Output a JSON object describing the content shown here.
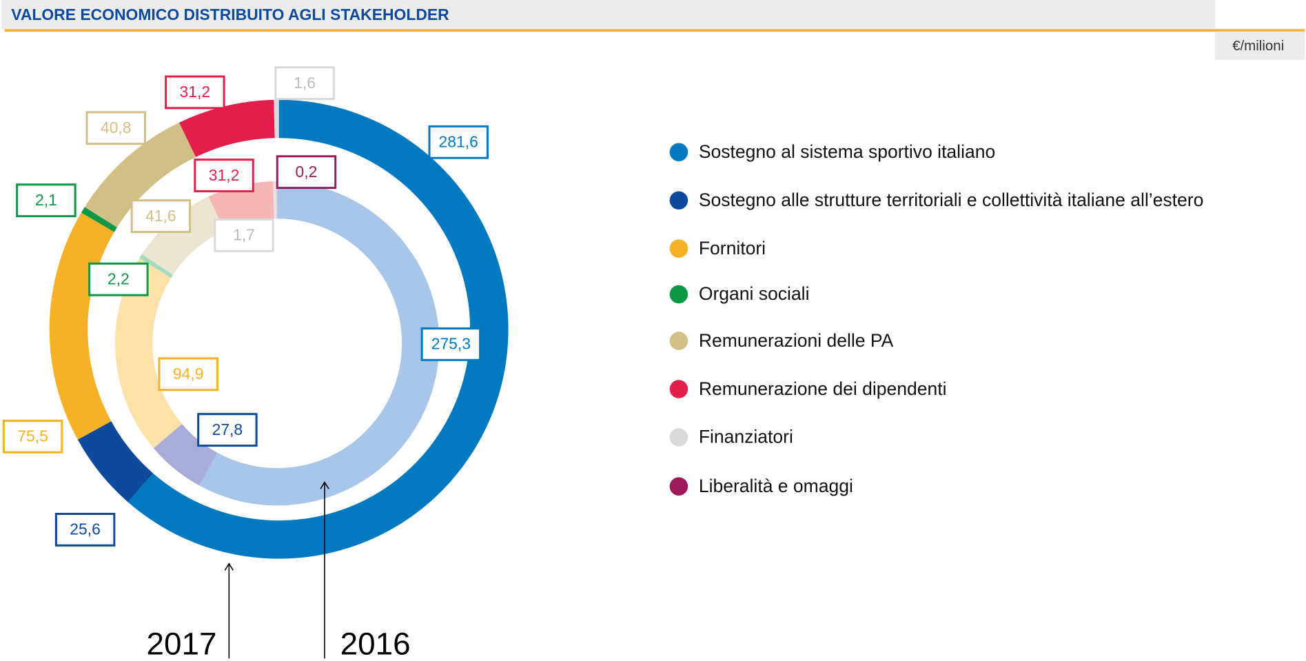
{
  "chart_data": {
    "type": "donut",
    "title": "VALORE ECONOMICO DISTRIBUITO AGLI STAKEHOLDER",
    "unit": "€/milioni",
    "categories": [
      "Sostegno al sistema sportivo italiano",
      "Sostegno alle strutture territoriali e collettività italiane all’estero",
      "Fornitori",
      "Organi sociali",
      "Remunerazioni delle PA",
      "Remunerazione dei dipendenti",
      "Finanziatori",
      "Liberalità e omaggi"
    ],
    "colors": [
      "#0079c1",
      "#0d4a9b",
      "#f7b126",
      "#0f9647",
      "#d2bf86",
      "#e21f4a",
      "#d9d9d9",
      "#9b1b5a"
    ],
    "series": [
      {
        "name": "2017",
        "colors": [
          "#0079c1",
          "#0d4a9b",
          "#f7b126",
          "#0f9647",
          "#d2bf86",
          "#e21f4a",
          "#d9d9d9",
          "#9b1b5a"
        ],
        "values": [
          281.6,
          25.6,
          75.5,
          2.1,
          40.8,
          31.2,
          1.6,
          null
        ],
        "value_labels": [
          "281,6",
          "25,6",
          "75,5",
          "2,1",
          "40,8",
          "31,2",
          "1,6",
          null
        ]
      },
      {
        "name": "2016",
        "colors": [
          "#a7c6ea",
          "#a7acd9",
          "#fde1a9",
          "#a4dcc0",
          "#ece5d2",
          "#f6b6b5",
          "#e4e4e4",
          "#d7a6bf"
        ],
        "values": [
          275.3,
          27.8,
          94.9,
          2.2,
          41.6,
          31.2,
          1.7,
          0.2
        ],
        "value_labels": [
          "275,3",
          "27,8",
          "94,9",
          "2,2",
          "41,6",
          "31,2",
          "1,7",
          "0,2"
        ]
      }
    ]
  }
}
